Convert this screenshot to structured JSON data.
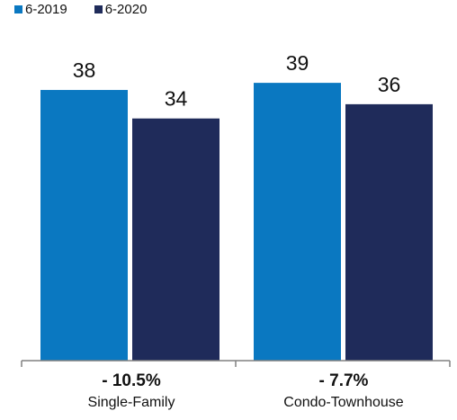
{
  "colors": {
    "series1": "#0a78c1",
    "series2": "#1f2b5a",
    "axis": "#808080"
  },
  "chart_data": {
    "type": "bar",
    "categories": [
      "Single-Family",
      "Condo-Townhouse"
    ],
    "category_changes": [
      "- 10.5%",
      "- 7.7%"
    ],
    "series": [
      {
        "name": "6-2019",
        "values": [
          38,
          39
        ]
      },
      {
        "name": "6-2020",
        "values": [
          34,
          36
        ]
      }
    ],
    "ylim": [
      0,
      50
    ],
    "grid": false,
    "legend": "top-left",
    "title": "",
    "xlabel": "",
    "ylabel": ""
  }
}
